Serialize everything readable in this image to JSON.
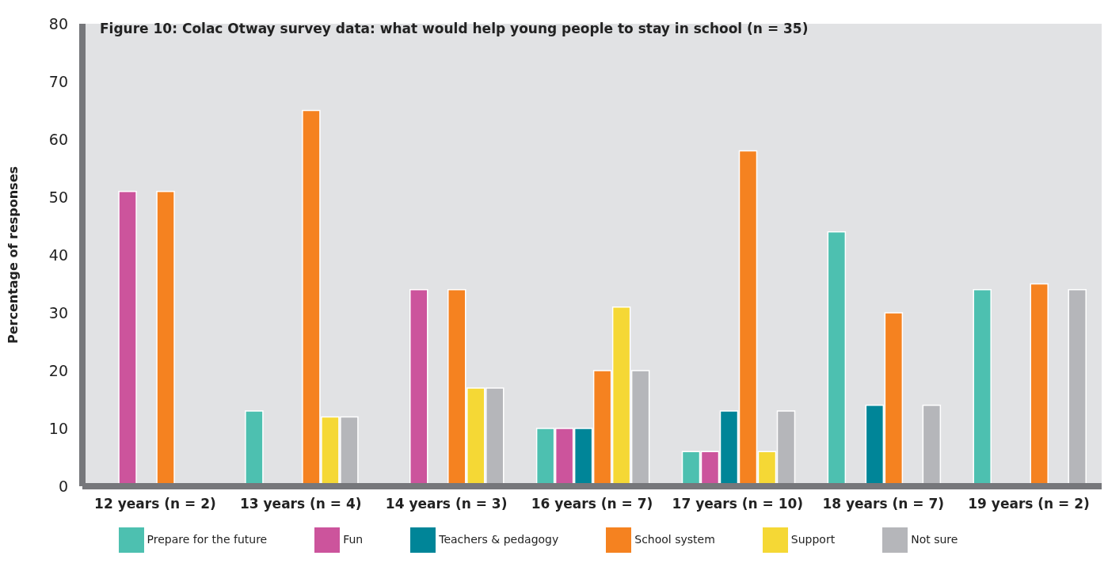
{
  "chart_data": {
    "type": "bar",
    "title": "Figure 10: Colac Otway survey data: what would help young people to stay in school (n = 35)",
    "ylabel": "Percentage of responses",
    "categories": [
      "12 years (n = 2)",
      "13 years (n = 4)",
      "14 years (n = 3)",
      "16 years (n = 7)",
      "17 years (n = 10)",
      "18 years (n = 7)",
      "19 years (n = 2)"
    ],
    "series": [
      {
        "name": "Prepare for the future",
        "color": "#4dc0b0",
        "values": [
          null,
          13,
          null,
          10,
          6,
          44,
          34
        ]
      },
      {
        "name": "Fun",
        "color": "#cc549c",
        "values": [
          51,
          null,
          34,
          10,
          6,
          null,
          null
        ]
      },
      {
        "name": "Teachers & pedagogy",
        "color": "#008598",
        "values": [
          null,
          null,
          null,
          10,
          13,
          14,
          null
        ]
      },
      {
        "name": "School system",
        "color": "#f58220",
        "values": [
          51,
          65,
          34,
          20,
          58,
          30,
          35
        ]
      },
      {
        "name": "Support",
        "color": "#f5d835",
        "values": [
          null,
          12,
          17,
          31,
          6,
          null,
          null
        ]
      },
      {
        "name": "Not sure",
        "color": "#b5b6ba",
        "values": [
          null,
          12,
          17,
          20,
          13,
          14,
          34
        ]
      }
    ],
    "ylim": [
      0,
      80
    ],
    "yticks": [
      0,
      10,
      20,
      30,
      40,
      50,
      60,
      70,
      80
    ],
    "grid": false,
    "legend": "bottom"
  }
}
